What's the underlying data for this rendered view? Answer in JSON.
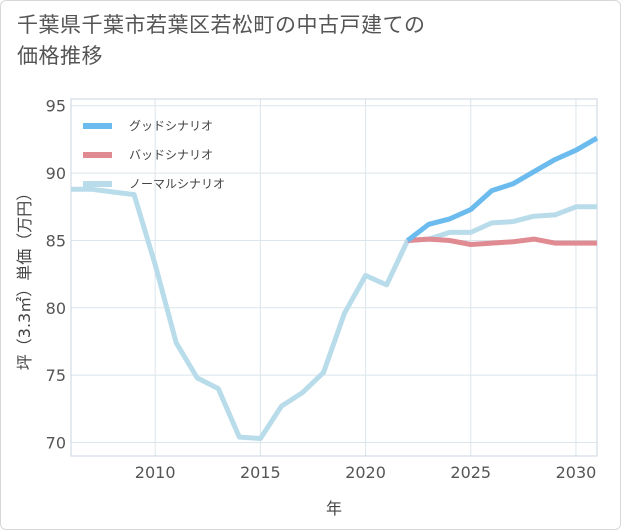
{
  "title": "千葉県千葉市若葉区若松町の中古戸建ての価格推移",
  "chart_data": {
    "type": "line",
    "xlabel": "年",
    "ylabel": "坪（3.3㎡）単価（万円）",
    "xlim": [
      2006,
      2031
    ],
    "ylim": [
      69,
      95.5
    ],
    "xticks": [
      2010,
      2015,
      2020,
      2025,
      2030
    ],
    "yticks": [
      70,
      75,
      80,
      85,
      90,
      95
    ],
    "grid": true,
    "legend_position": "top-left",
    "series": [
      {
        "name": "グッドシナリオ",
        "color": "#6bbbee",
        "x": [
          2022,
          2023,
          2024,
          2025,
          2026,
          2027,
          2028,
          2029,
          2030,
          2031
        ],
        "y": [
          85.0,
          86.2,
          86.6,
          87.3,
          88.7,
          89.2,
          90.1,
          91.0,
          91.7,
          92.6
        ]
      },
      {
        "name": "バッドシナリオ",
        "color": "#e08a92",
        "x": [
          2022,
          2023,
          2024,
          2025,
          2026,
          2027,
          2028,
          2029,
          2030,
          2031
        ],
        "y": [
          85.0,
          85.1,
          85.0,
          84.7,
          84.8,
          84.9,
          85.1,
          84.8,
          84.8,
          84.8
        ]
      },
      {
        "name": "ノーマルシナリオ",
        "color": "#b9dceb",
        "x": [
          2006,
          2007,
          2008,
          2009,
          2010,
          2011,
          2012,
          2013,
          2014,
          2015,
          2016,
          2017,
          2018,
          2019,
          2020,
          2021,
          2022,
          2023,
          2024,
          2025,
          2026,
          2027,
          2028,
          2029,
          2030,
          2031
        ],
        "y": [
          88.8,
          88.8,
          88.6,
          88.4,
          83.2,
          77.4,
          74.8,
          74.0,
          70.4,
          70.3,
          72.7,
          73.7,
          75.2,
          79.6,
          82.4,
          81.7,
          85.0,
          85.1,
          85.6,
          85.6,
          86.3,
          86.4,
          86.8,
          86.9,
          87.5,
          87.5
        ]
      }
    ]
  }
}
